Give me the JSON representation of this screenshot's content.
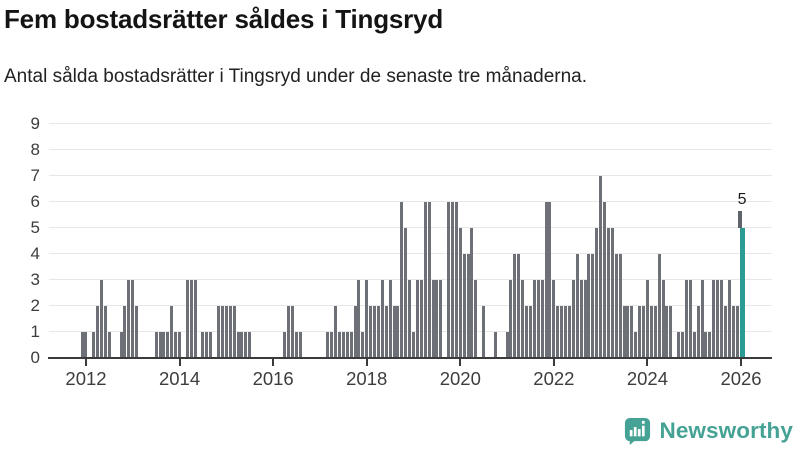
{
  "header": {
    "title": "Fem bostadsrätter såldes i Tingsryd",
    "subtitle": "Antal sålda bostadsrätter i Tingsryd under de senaste tre månaderna."
  },
  "chart_data": {
    "type": "bar",
    "title": "Fem bostadsrätter såldes i Tingsryd",
    "subtitle": "Antal sålda bostadsrätter i Tingsryd under de senaste tre månaderna.",
    "frequency": "monthly",
    "start_month": "2011-04",
    "end_month": "2026-01",
    "values": [
      0,
      0,
      0,
      0,
      0,
      0,
      0,
      0,
      1,
      1,
      0,
      1,
      2,
      3,
      2,
      1,
      0,
      0,
      1,
      2,
      3,
      3,
      2,
      0,
      0,
      0,
      0,
      1,
      1,
      1,
      1,
      2,
      1,
      1,
      0,
      3,
      3,
      3,
      0,
      1,
      1,
      1,
      0,
      2,
      2,
      2,
      2,
      2,
      1,
      1,
      1,
      1,
      0,
      0,
      0,
      0,
      0,
      0,
      0,
      0,
      1,
      2,
      2,
      1,
      1,
      0,
      0,
      0,
      0,
      0,
      0,
      1,
      1,
      2,
      1,
      1,
      1,
      1,
      2,
      3,
      1,
      3,
      2,
      2,
      2,
      3,
      2,
      3,
      2,
      2,
      6,
      5,
      3,
      1,
      3,
      3,
      6,
      6,
      3,
      3,
      3,
      0,
      6,
      6,
      6,
      5,
      4,
      4,
      5,
      3,
      0,
      2,
      0,
      0,
      1,
      0,
      0,
      1,
      3,
      4,
      4,
      3,
      2,
      2,
      3,
      3,
      3,
      6,
      6,
      3,
      2,
      2,
      2,
      2,
      3,
      4,
      3,
      3,
      4,
      4,
      5,
      7,
      6,
      5,
      5,
      4,
      4,
      2,
      2,
      2,
      1,
      2,
      2,
      3,
      2,
      2,
      4,
      3,
      2,
      2,
      0,
      1,
      1,
      3,
      3,
      1,
      2,
      3,
      1,
      1,
      3,
      3,
      3,
      2,
      3,
      2,
      2,
      5
    ],
    "highlight": {
      "month": "2026-01",
      "value": 5,
      "label": "5"
    },
    "y_ticks": [
      0,
      1,
      2,
      3,
      4,
      5,
      6,
      7,
      8,
      9
    ],
    "x_tick_years": [
      "2012",
      "2014",
      "2016",
      "2018",
      "2020",
      "2022",
      "2024",
      "2026"
    ],
    "ylim": [
      0,
      9
    ],
    "grid": true,
    "legend": "none",
    "colors": {
      "bar": "#6d7076",
      "highlight": "#2a9b95",
      "axis": "#3b3b3b",
      "gridline": "#e7e7e7",
      "tick_label": "#3d3d3d",
      "leader": "#5f636a"
    }
  },
  "footer": {
    "logo_text": "Newsworthy",
    "logo_color": "#45a294",
    "logo_icon": "bar-chart-speech-bubble-icon"
  }
}
